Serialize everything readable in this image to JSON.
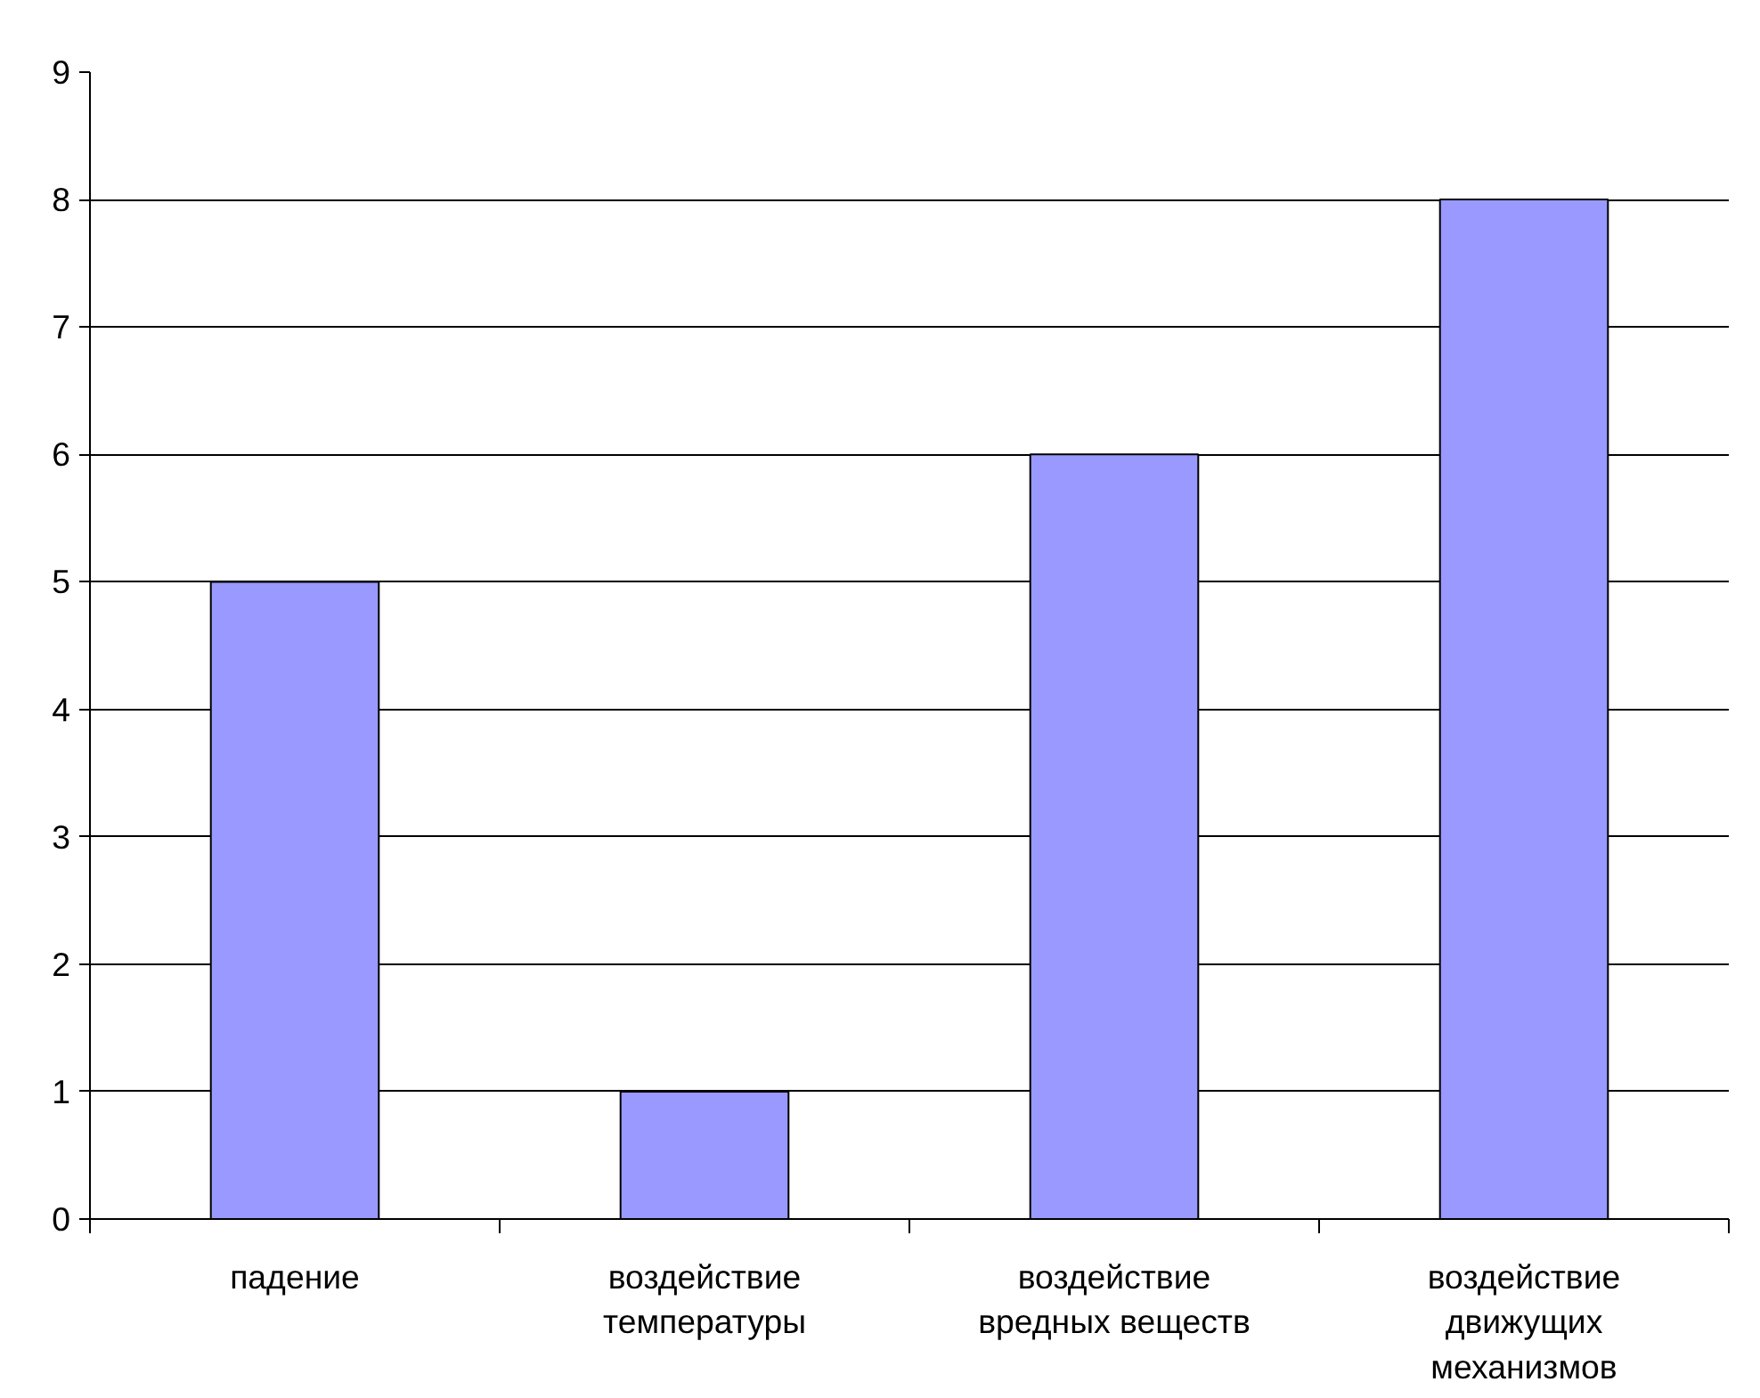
{
  "chart_data": {
    "type": "bar",
    "categories": [
      "падение",
      "воздействие температуры",
      "воздействие вредных веществ",
      "воздействие движущих механизмов"
    ],
    "values": [
      5,
      1,
      6,
      8
    ],
    "color": "#9999ff",
    "ylim": [
      0,
      9
    ],
    "yticks": [
      0,
      1,
      2,
      3,
      4,
      5,
      6,
      7,
      8,
      9
    ],
    "grid": "y"
  }
}
